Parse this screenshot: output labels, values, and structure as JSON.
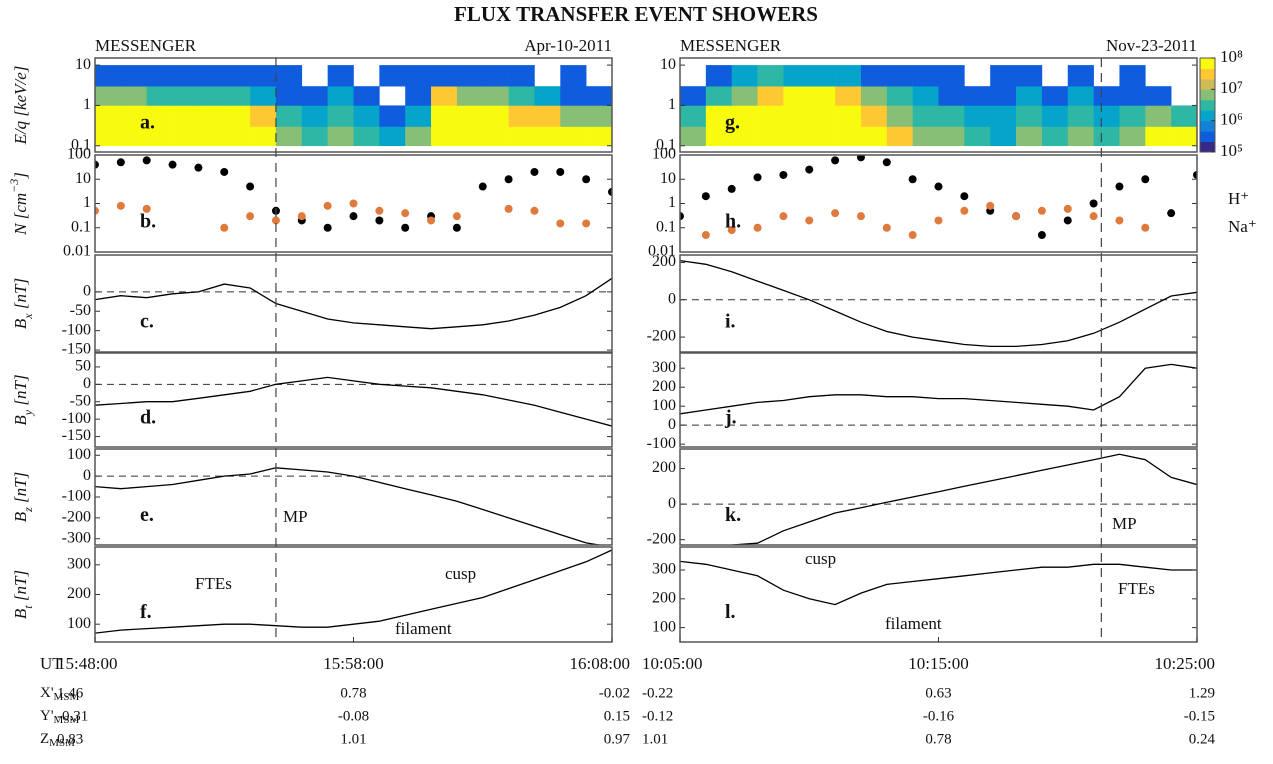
{
  "title": "FLUX TRANSFER EVENT SHOWERS",
  "time_label": "UT",
  "colorbar": {
    "clim": [
      100000,
      100000000
    ],
    "cticks": [
      {
        "value": 100000,
        "label": "10⁵"
      },
      {
        "value": 1000000,
        "label": "10⁶"
      },
      {
        "value": 10000000,
        "label": "10⁷"
      },
      {
        "value": 100000000,
        "label": "10⁸"
      }
    ],
    "colormap": [
      "#352a87",
      "#0f5cdd",
      "#1481d6",
      "#06a4ca",
      "#2eb7a4",
      "#87bf77",
      "#d1bb59",
      "#fec832",
      "#f9fb0e"
    ]
  },
  "ephemeris": [
    {
      "label": "X'",
      "sub": "MSM",
      "values": [
        [
          1.46,
          0.78,
          -0.02
        ],
        [
          -0.22,
          0.63,
          1.29
        ]
      ]
    },
    {
      "label": "Y'",
      "sub": "MSM",
      "values": [
        [
          -0.31,
          -0.08,
          0.15
        ],
        [
          -0.12,
          -0.16,
          -0.15
        ]
      ]
    },
    {
      "label": "Z",
      "sub": "MSM",
      "values": [
        [
          0.83,
          1.01,
          0.97
        ],
        [
          1.01,
          0.78,
          0.24
        ]
      ]
    }
  ],
  "chart_data": [
    {
      "type": "stacked-panels",
      "instrument": "MESSENGER",
      "date": "Apr-10-2011",
      "xlim": [
        "15:48:00",
        "16:08:00"
      ],
      "xticks": [
        "15:48:00",
        "15:58:00",
        "16:08:00"
      ],
      "mp_time": "15:55:00",
      "x": [
        "15:48:00",
        "15:49:00",
        "15:50:00",
        "15:51:00",
        "15:52:00",
        "15:53:00",
        "15:54:00",
        "15:55:00",
        "15:56:00",
        "15:57:00",
        "15:58:00",
        "15:59:00",
        "16:00:00",
        "16:01:00",
        "16:02:00",
        "16:03:00",
        "16:04:00",
        "16:05:00",
        "16:06:00",
        "16:07:00",
        "16:08:00"
      ],
      "panels": [
        {
          "type": "heatmap",
          "label": "a.",
          "ylabel": [
            {
              "text": "E/q [keV/e]"
            }
          ],
          "log": true,
          "ylim": [
            0.07,
            15
          ],
          "yticks": [
            0.1,
            1,
            10
          ],
          "energy_bins": [
            0.1,
            0.3,
            1,
            3,
            10
          ],
          "z": [
            [
              100000000.0,
              100000000.0,
              100000000.0,
              100000000.0,
              100000000.0,
              100000000.0,
              100000000.0,
              10000000.0,
              3000000.0,
              10000000.0,
              3000000.0,
              1000000.0,
              10000000.0,
              100000000.0,
              100000000.0,
              100000000.0,
              100000000.0,
              100000000.0,
              100000000.0,
              100000000.0
            ],
            [
              100000000.0,
              100000000.0,
              100000000.0,
              100000000.0,
              100000000.0,
              100000000.0,
              30000000.0,
              3000000.0,
              1000000.0,
              3000000.0,
              1000000.0,
              300000.0,
              1000000.0,
              100000000.0,
              100000000.0,
              100000000.0,
              30000000.0,
              30000000.0,
              10000000.0,
              10000000.0
            ],
            [
              10000000.0,
              10000000.0,
              3000000.0,
              3000000.0,
              3000000.0,
              3000000.0,
              1000000.0,
              300000.0,
              300000.0,
              1000000.0,
              300000.0,
              null,
              300000.0,
              30000000.0,
              10000000.0,
              10000000.0,
              3000000.0,
              1000000.0,
              300000.0,
              300000.0
            ],
            [
              300000.0,
              300000.0,
              200000.0,
              300000.0,
              200000.0,
              300000.0,
              200000.0,
              200000.0,
              null,
              200000.0,
              null,
              200000.0,
              200000.0,
              300000.0,
              300000.0,
              200000.0,
              200000.0,
              null,
              200000.0,
              null
            ]
          ]
        },
        {
          "type": "scatter",
          "label": "b.",
          "ylabel": [
            {
              "text": "N [cm"
            },
            {
              "text": "−3",
              "sup": true
            },
            {
              "text": "]"
            }
          ],
          "log": true,
          "ylim": [
            0.01,
            100
          ],
          "yticks": [
            0.01,
            0.1,
            1,
            10,
            100
          ],
          "series": [
            {
              "color": "#000000",
              "values": [
                40,
                50,
                60,
                40,
                30,
                20,
                5,
                0.5,
                0.2,
                0.1,
                0.3,
                0.2,
                0.1,
                0.3,
                0.1,
                5,
                10,
                20,
                20,
                10,
                3
              ]
            },
            {
              "color": "#e07a3c",
              "values": [
                0.5,
                0.8,
                0.6,
                null,
                null,
                0.1,
                0.3,
                0.2,
                0.3,
                0.8,
                1,
                0.5,
                0.4,
                0.2,
                0.3,
                null,
                0.6,
                0.5,
                0.15,
                0.15,
                null
              ]
            }
          ]
        },
        {
          "type": "line",
          "label": "c.",
          "ylabel": [
            {
              "text": "B"
            },
            {
              "text": "x",
              "sub": true
            },
            {
              "text": " [nT]"
            }
          ],
          "ylim": [
            -155,
            95
          ],
          "yticks": [
            -150,
            -100,
            -50,
            0
          ],
          "ref_line": 0,
          "series": [
            {
              "color": "#000000",
              "values": [
                -20,
                -10,
                -15,
                -5,
                0,
                20,
                10,
                -30,
                -50,
                -70,
                -80,
                -85,
                -90,
                -95,
                -90,
                -85,
                -75,
                -60,
                -40,
                -10,
                35
              ]
            }
          ]
        },
        {
          "type": "line",
          "label": "d.",
          "ylabel": [
            {
              "text": "B"
            },
            {
              "text": "y",
              "sub": true
            },
            {
              "text": " [nT]"
            }
          ],
          "ylim": [
            -180,
            90
          ],
          "yticks": [
            -150,
            -100,
            -50,
            0,
            50
          ],
          "ref_line": 0,
          "series": [
            {
              "color": "#000000",
              "values": [
                -60,
                -55,
                -50,
                -50,
                -40,
                -30,
                -20,
                0,
                10,
                20,
                10,
                0,
                -5,
                -10,
                -20,
                -30,
                -45,
                -60,
                -80,
                -100,
                -120
              ]
            }
          ]
        },
        {
          "type": "line",
          "label": "e.",
          "ylabel": [
            {
              "text": "B"
            },
            {
              "text": "z",
              "sub": true
            },
            {
              "text": " [nT]"
            }
          ],
          "ylim": [
            -330,
            130
          ],
          "yticks": [
            -300,
            -200,
            -100,
            0,
            100
          ],
          "ref_line": 0,
          "annotations": [
            "MP"
          ],
          "series": [
            {
              "color": "#000000",
              "values": [
                -50,
                -60,
                -50,
                -40,
                -20,
                0,
                10,
                40,
                30,
                20,
                0,
                -30,
                -60,
                -90,
                -120,
                -160,
                -200,
                -240,
                -280,
                -320,
                -340
              ]
            }
          ]
        },
        {
          "type": "line",
          "label": "f.",
          "ylabel": [
            {
              "text": "B"
            },
            {
              "text": "t",
              "sub": true
            },
            {
              "text": " [nT]"
            }
          ],
          "ylim": [
            40,
            360
          ],
          "yticks": [
            100,
            200,
            300
          ],
          "annotations": [
            "FTEs",
            "cusp",
            "filament"
          ],
          "series": [
            {
              "color": "#000000",
              "values": [
                70,
                80,
                85,
                90,
                95,
                100,
                100,
                95,
                90,
                90,
                100,
                110,
                130,
                150,
                170,
                190,
                220,
                250,
                280,
                310,
                350
              ]
            }
          ]
        }
      ]
    },
    {
      "type": "stacked-panels",
      "instrument": "MESSENGER",
      "date": "Nov-23-2011",
      "xlim": [
        "10:05:00",
        "10:25:00"
      ],
      "xticks": [
        "10:05:00",
        "10:15:00",
        "10:25:00"
      ],
      "mp_time": "10:21:18",
      "x": [
        "10:05:00",
        "10:06:00",
        "10:07:00",
        "10:08:00",
        "10:09:00",
        "10:10:00",
        "10:11:00",
        "10:12:00",
        "10:13:00",
        "10:14:00",
        "10:15:00",
        "10:16:00",
        "10:17:00",
        "10:18:00",
        "10:19:00",
        "10:20:00",
        "10:21:00",
        "10:22:00",
        "10:23:00",
        "10:24:00",
        "10:25:00"
      ],
      "panels": [
        {
          "type": "heatmap",
          "label": "g.",
          "log": true,
          "ylim": [
            0.07,
            15
          ],
          "yticks": [
            0.1,
            1,
            10
          ],
          "energy_bins": [
            0.1,
            0.3,
            1,
            3,
            10
          ],
          "z": [
            [
              10000000.0,
              100000000.0,
              100000000.0,
              100000000.0,
              100000000.0,
              100000000.0,
              100000000.0,
              100000000.0,
              30000000.0,
              10000000.0,
              10000000.0,
              3000000.0,
              1000000.0,
              10000000.0,
              3000000.0,
              10000000.0,
              3000000.0,
              10000000.0,
              100000000.0,
              100000000.0
            ],
            [
              3000000.0,
              100000000.0,
              100000000.0,
              100000000.0,
              100000000.0,
              100000000.0,
              100000000.0,
              30000000.0,
              10000000.0,
              3000000.0,
              3000000.0,
              1000000.0,
              1000000.0,
              3000000.0,
              1000000.0,
              3000000.0,
              1000000.0,
              3000000.0,
              10000000.0,
              3000000.0
            ],
            [
              300000.0,
              3000000.0,
              10000000.0,
              30000000.0,
              100000000.0,
              100000000.0,
              30000000.0,
              10000000.0,
              3000000.0,
              1000000.0,
              300000.0,
              300000.0,
              200000.0,
              1000000.0,
              300000.0,
              1000000.0,
              200000.0,
              300000.0,
              200000.0,
              null
            ],
            [
              null,
              300000.0,
              1000000.0,
              3000000.0,
              1000000.0,
              1000000.0,
              1000000.0,
              300000.0,
              300000.0,
              200000.0,
              200000.0,
              null,
              200000.0,
              200000.0,
              null,
              200000.0,
              null,
              200000.0,
              null,
              null
            ]
          ]
        },
        {
          "type": "scatter",
          "label": "h.",
          "log": true,
          "ylim": [
            0.01,
            100
          ],
          "yticks": [
            0.01,
            0.1,
            1,
            10,
            100
          ],
          "series": [
            {
              "name": "H⁺",
              "color": "#000000",
              "values": [
                0.3,
                2,
                4,
                12,
                15,
                25,
                60,
                80,
                50,
                10,
                5,
                2,
                0.5,
                0.3,
                0.05,
                0.2,
                1,
                5,
                10,
                0.4,
                15
              ]
            },
            {
              "name": "Na⁺",
              "color": "#e07a3c",
              "values": [
                null,
                0.05,
                0.08,
                0.1,
                0.3,
                0.2,
                0.4,
                0.3,
                0.1,
                0.05,
                0.2,
                0.5,
                0.8,
                0.3,
                0.5,
                0.6,
                0.3,
                0.2,
                0.1,
                null,
                null
              ]
            }
          ]
        },
        {
          "type": "line",
          "label": "i.",
          "ylim": [
            -280,
            240
          ],
          "yticks": [
            -200,
            0,
            200
          ],
          "ref_line": 0,
          "series": [
            {
              "color": "#000000",
              "values": [
                210,
                190,
                150,
                100,
                50,
                0,
                -60,
                -120,
                -170,
                -200,
                -220,
                -240,
                -250,
                -250,
                -240,
                -220,
                -180,
                -120,
                -50,
                20,
                40
              ]
            }
          ]
        },
        {
          "type": "line",
          "label": "j.",
          "ylim": [
            -115,
            380
          ],
          "yticks": [
            -100,
            0,
            100,
            200,
            300
          ],
          "ref_line": 0,
          "series": [
            {
              "color": "#000000",
              "values": [
                60,
                80,
                100,
                120,
                130,
                150,
                160,
                160,
                150,
                150,
                140,
                140,
                130,
                120,
                110,
                100,
                80,
                150,
                300,
                320,
                300
              ]
            }
          ]
        },
        {
          "type": "line",
          "label": "k.",
          "ylim": [
            -230,
            310
          ],
          "yticks": [
            -200,
            0,
            200
          ],
          "ref_line": 0,
          "annotations": [
            "MP"
          ],
          "series": [
            {
              "color": "#000000",
              "values": [
                -230,
                -235,
                -230,
                -220,
                -150,
                -100,
                -50,
                -20,
                10,
                40,
                70,
                100,
                130,
                160,
                190,
                220,
                250,
                280,
                250,
                150,
                110
              ]
            }
          ]
        },
        {
          "type": "line",
          "label": "l.",
          "ylim": [
            50,
            380
          ],
          "yticks": [
            100,
            200,
            300
          ],
          "annotations": [
            "cusp",
            "filament",
            "FTEs"
          ],
          "series": [
            {
              "color": "#000000",
              "values": [
                330,
                320,
                300,
                280,
                230,
                200,
                180,
                220,
                250,
                260,
                270,
                280,
                290,
                300,
                310,
                310,
                320,
                320,
                310,
                300,
                300
              ]
            }
          ]
        }
      ]
    }
  ]
}
